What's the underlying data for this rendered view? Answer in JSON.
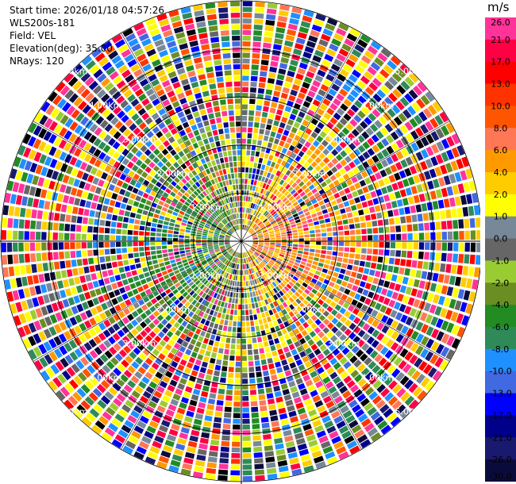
{
  "header": {
    "start_time": "Start time: 2026/01/18 04:57:26",
    "site": "WLS200s-181",
    "field": "Field: VEL",
    "elevation": "Elevation(deg): 35.00",
    "nrays": "NRays: 120"
  },
  "colorbar": {
    "unit": "m/s",
    "labels": [
      "26.0",
      "21.0",
      "17.0",
      "13.0",
      "10.0",
      "8.0",
      "6.0",
      "4.0",
      "2.0",
      "1.0",
      "0.0",
      "-1.0",
      "-2.0",
      "-4.0",
      "-6.0",
      "-8.0",
      "-10.0",
      "-13.0",
      "-17.0",
      "-21.0",
      "-26.0",
      "-30.0"
    ],
    "colors": [
      "#ff3399",
      "#ff0044",
      "#ff0000",
      "#ff3300",
      "#ff5500",
      "#ff7755",
      "#ff9900",
      "#ffcc00",
      "#ffff00",
      "#778899",
      "#666666",
      "#99cc33",
      "#6b8e23",
      "#228b22",
      "#2e8b57",
      "#1e90ff",
      "#4169e1",
      "#0000ff",
      "#00008b",
      "#191970",
      "#0b0b3b"
    ]
  },
  "chart_data": {
    "type": "ppi",
    "field": "VEL",
    "units": "m/s",
    "nrays": 120,
    "elevation_deg": 35.0,
    "range_rings_km": [
      1.0,
      2.0,
      3.0,
      4.0,
      5.0
    ],
    "ring_labels": [
      "1.00km",
      "2.00km",
      "3.00km",
      "4.00km",
      "5.00km"
    ],
    "max_range_km": 5.0,
    "color_levels": [
      -30.0,
      -26.0,
      -21.0,
      -17.0,
      -13.0,
      -10.0,
      -8.0,
      -6.0,
      -4.0,
      -2.0,
      -1.0,
      0.0,
      1.0,
      2.0,
      4.0,
      6.0,
      8.0,
      10.0,
      13.0,
      17.0,
      21.0,
      26.0
    ]
  }
}
